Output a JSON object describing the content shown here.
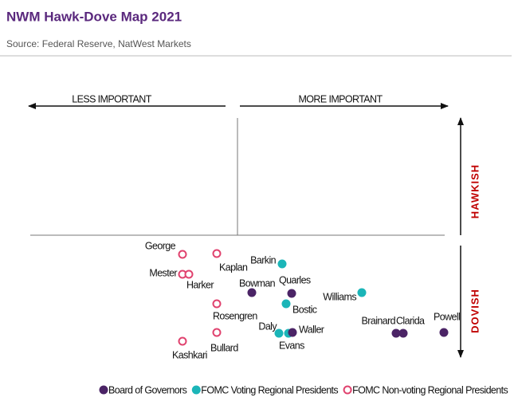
{
  "header": {
    "title": "NWM Hawk-Dove Map 2021",
    "source": "Source: Federal Reserve, NatWest Markets"
  },
  "axes": {
    "left": "LESS IMPORTANT",
    "right": "MORE IMPORTANT",
    "up": "HAWKISH",
    "down": "DOVISH"
  },
  "legend": [
    {
      "label": "Board of Governors",
      "color": "#4b2466",
      "filled": true
    },
    {
      "label": "FOMC Voting Regional Presidents",
      "color": "#1bb5b8",
      "filled": true
    },
    {
      "label": "FOMC Non-voting Regional Presidents",
      "color": "#e0426e",
      "filled": false
    }
  ],
  "nodes": [
    {
      "label": "George",
      "group": 2
    },
    {
      "label": "Kaplan",
      "group": 2
    },
    {
      "label": "Mester",
      "group": 2
    },
    {
      "label": "Harker",
      "group": 2
    },
    {
      "label": "Rosengren",
      "group": 2
    },
    {
      "label": "Bullard",
      "group": 2
    },
    {
      "label": "Kashkari",
      "group": 2
    },
    {
      "label": "Barkin",
      "group": 1
    },
    {
      "label": "Bowman",
      "group": 0
    },
    {
      "label": "Quarles",
      "group": 0
    },
    {
      "label": "Bostic",
      "group": 1
    },
    {
      "label": "Williams",
      "group": 1
    },
    {
      "label": "Daly",
      "group": 1
    },
    {
      "label": "Evans",
      "group": 1
    },
    {
      "label": "Waller",
      "group": 0
    },
    {
      "label": "Brainard",
      "group": 0
    },
    {
      "label": "Clarida",
      "group": 0
    },
    {
      "label": "Powell",
      "group": 0
    }
  ]
}
